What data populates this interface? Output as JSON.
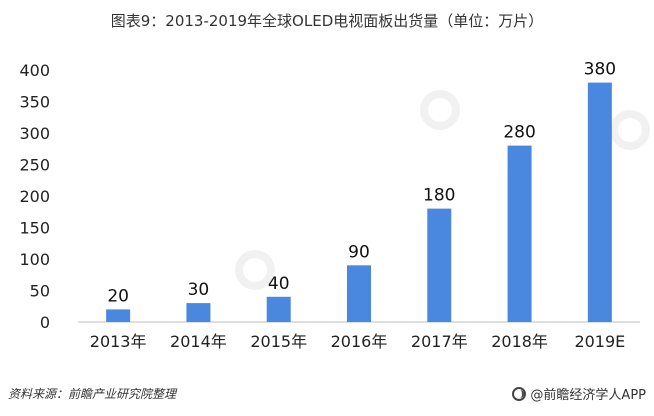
{
  "chart_data": {
    "type": "bar",
    "title": "图表9：2013-2019年全球OLED电视面板出货量（单位：万片）",
    "categories": [
      "2013年",
      "2014年",
      "2015年",
      "2016年",
      "2017年",
      "2018年",
      "2019E"
    ],
    "values": [
      20,
      30,
      40,
      90,
      180,
      280,
      380
    ],
    "ylim": [
      0,
      400
    ],
    "yticks": [
      0,
      50,
      100,
      150,
      200,
      250,
      300,
      350,
      400
    ],
    "grid": false,
    "legend": "none",
    "bar_color": "#4a88e0",
    "xlabel": "",
    "ylabel": ""
  },
  "footer": {
    "source": "资料来源：前瞻产业研究院整理",
    "brand": "@前瞻经济学人APP"
  },
  "watermark_icon": "qianzhan-logo-icon"
}
